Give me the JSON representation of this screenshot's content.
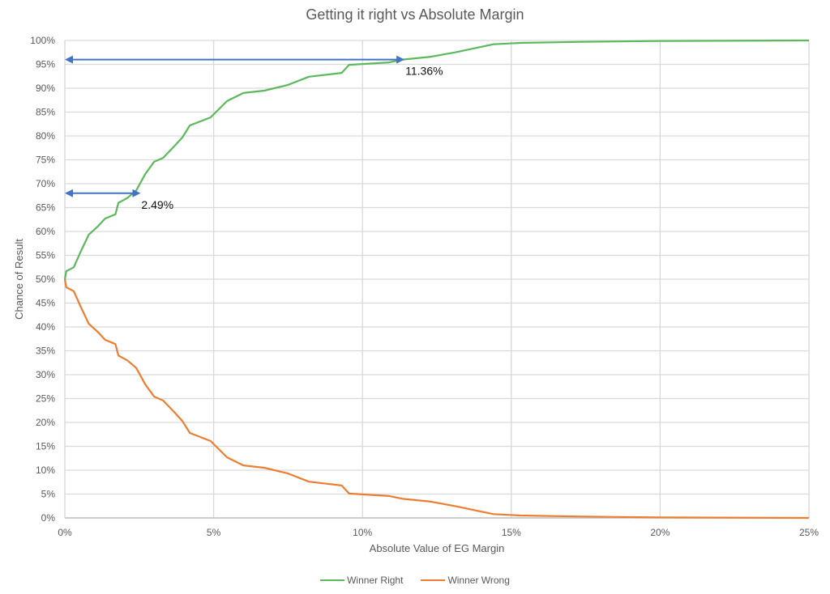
{
  "chart_data": {
    "type": "line",
    "title": "Getting it right vs Absolute Margin",
    "xlabel": "Absolute Value of EG Margin",
    "ylabel": "Chance of Result",
    "xlim": [
      0,
      25
    ],
    "ylim": [
      0,
      100
    ],
    "x_ticks": [
      "0%",
      "5%",
      "10%",
      "15%",
      "20%",
      "25%"
    ],
    "y_ticks": [
      "0%",
      "5%",
      "10%",
      "15%",
      "20%",
      "25%",
      "30%",
      "35%",
      "40%",
      "45%",
      "50%",
      "55%",
      "60%",
      "65%",
      "70%",
      "75%",
      "80%",
      "85%",
      "90%",
      "95%",
      "100%"
    ],
    "grid": true,
    "legend_position": "bottom",
    "series": [
      {
        "name": "Winner Right",
        "color": "#5cb85c",
        "x": [
          0,
          0.05,
          0.3,
          0.55,
          0.8,
          1.1,
          1.35,
          1.7,
          1.8,
          2.1,
          2.4,
          2.7,
          3.0,
          3.3,
          3.7,
          3.95,
          4.2,
          4.9,
          5.45,
          6.0,
          6.7,
          7.5,
          8.2,
          9.3,
          9.55,
          10.9,
          11.36,
          12.3,
          13.1,
          14.4,
          15.3,
          17.2,
          20,
          25
        ],
        "values": [
          50,
          51.7,
          52.5,
          56,
          59.3,
          61,
          62.7,
          63.6,
          66,
          67,
          68.6,
          72,
          74.6,
          75.4,
          78,
          79.7,
          82.2,
          83.9,
          87.3,
          89,
          89.5,
          90.7,
          92.4,
          93.2,
          94.9,
          95.4,
          96,
          96.6,
          97.5,
          99.2,
          99.5,
          99.7,
          99.9,
          100
        ]
      },
      {
        "name": "Winner Wrong",
        "color": "#ed7d31",
        "x": [
          0,
          0.05,
          0.3,
          0.55,
          0.8,
          1.1,
          1.35,
          1.7,
          1.8,
          2.1,
          2.4,
          2.7,
          3.0,
          3.3,
          3.7,
          3.95,
          4.2,
          4.9,
          5.45,
          6.0,
          6.7,
          7.5,
          8.2,
          9.3,
          9.55,
          10.9,
          11.36,
          12.3,
          13.1,
          14.4,
          15.3,
          17.2,
          20,
          25
        ],
        "values": [
          50,
          48.3,
          47.5,
          44,
          40.7,
          39,
          37.3,
          36.4,
          34,
          33,
          31.4,
          28,
          25.4,
          24.6,
          22,
          20.3,
          17.8,
          16.1,
          12.7,
          11,
          10.5,
          9.3,
          7.6,
          6.8,
          5.1,
          4.6,
          4,
          3.4,
          2.5,
          0.8,
          0.5,
          0.3,
          0.1,
          0
        ]
      }
    ],
    "annotations": [
      {
        "label": "2.49%",
        "x_from": 0,
        "x_to": 2.49,
        "y": 68
      },
      {
        "label": "11.36%",
        "x_from": 0,
        "x_to": 11.36,
        "y": 96
      }
    ]
  },
  "legend": {
    "items": [
      {
        "label": "Winner Right",
        "color": "#5cb85c"
      },
      {
        "label": "Winner Wrong",
        "color": "#ed7d31"
      }
    ]
  }
}
